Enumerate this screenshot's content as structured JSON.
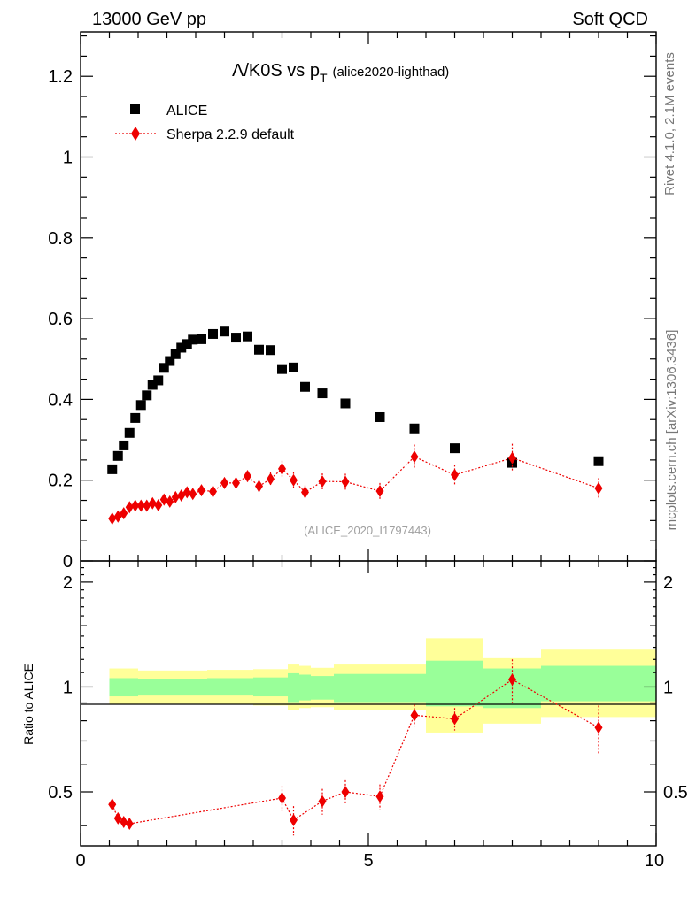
{
  "header": {
    "left": "13000 GeV pp",
    "right": "Soft QCD"
  },
  "side_labels": {
    "rivet": "Rivet 4.1.0,  2.1M events",
    "mcplots": "mcplots.cern.ch [arXiv:1306.3436]"
  },
  "colors": {
    "data": "#000000",
    "mc": "#ee0000",
    "band_inner": "#99ff99",
    "band_outer": "#ffff99"
  },
  "chart_data": [
    {
      "type": "scatter",
      "title_main": "Λ/K0S vs p",
      "title_sub": "T",
      "title_tag": "(alice2020-lighthad)",
      "watermark": "(ALICE_2020_I1797443)",
      "xlim": [
        0,
        10
      ],
      "ylim": [
        0,
        1.31
      ],
      "yticks": [
        0.2,
        0.4,
        0.6,
        0.8,
        1,
        1.2
      ],
      "ytick_labels": [
        "0.2",
        "0.4",
        "0.6",
        "0.8",
        "1",
        "1.2"
      ],
      "ybottom_label": "0",
      "legend": [
        "ALICE",
        "Sherpa 2.2.9 default"
      ],
      "legend_position": "top-left",
      "series": [
        {
          "name": "ALICE",
          "marker": "square",
          "x": [
            0.55,
            0.65,
            0.75,
            0.85,
            0.95,
            1.05,
            1.15,
            1.25,
            1.35,
            1.45,
            1.55,
            1.65,
            1.75,
            1.85,
            1.95,
            2.1,
            2.3,
            2.5,
            2.7,
            2.9,
            3.1,
            3.3,
            3.5,
            3.7,
            3.9,
            4.2,
            4.6,
            5.2,
            5.8,
            6.5,
            7.5,
            9.0
          ],
          "y": [
            0.227,
            0.26,
            0.286,
            0.317,
            0.354,
            0.386,
            0.41,
            0.436,
            0.447,
            0.478,
            0.495,
            0.512,
            0.528,
            0.537,
            0.548,
            0.549,
            0.562,
            0.568,
            0.553,
            0.556,
            0.523,
            0.522,
            0.475,
            0.479,
            0.431,
            0.415,
            0.39,
            0.356,
            0.328,
            0.279,
            0.243,
            0.247
          ]
        },
        {
          "name": "Sherpa 2.2.9 default",
          "marker": "diamond",
          "x": [
            0.55,
            0.65,
            0.75,
            0.85,
            0.95,
            1.05,
            1.15,
            1.25,
            1.35,
            1.45,
            1.55,
            1.65,
            1.75,
            1.85,
            1.95,
            2.1,
            2.3,
            2.5,
            2.7,
            2.9,
            3.1,
            3.3,
            3.5,
            3.7,
            3.9,
            4.2,
            4.6,
            5.2,
            5.8,
            6.5,
            7.5,
            9.0
          ],
          "y": [
            0.105,
            0.11,
            0.118,
            0.133,
            0.137,
            0.137,
            0.137,
            0.143,
            0.138,
            0.152,
            0.147,
            0.158,
            0.162,
            0.17,
            0.166,
            0.175,
            0.172,
            0.193,
            0.193,
            0.21,
            0.185,
            0.203,
            0.228,
            0.2,
            0.17,
            0.197,
            0.196,
            0.173,
            0.258,
            0.213,
            0.255,
            0.18
          ],
          "yerr": [
            0.006,
            0.006,
            0.006,
            0.007,
            0.007,
            0.007,
            0.007,
            0.008,
            0.008,
            0.009,
            0.009,
            0.009,
            0.009,
            0.01,
            0.01,
            0.01,
            0.011,
            0.012,
            0.012,
            0.014,
            0.014,
            0.016,
            0.02,
            0.02,
            0.017,
            0.02,
            0.02,
            0.02,
            0.03,
            0.025,
            0.035,
            0.025
          ]
        }
      ]
    },
    {
      "type": "scatter",
      "ylabel": "Ratio to ALICE",
      "xlim": [
        0,
        10
      ],
      "ylim": [
        0.35,
        2.3
      ],
      "yscale": "log",
      "xticks": [
        0,
        5,
        10
      ],
      "xtick_labels": [
        "0",
        "5",
        "10"
      ],
      "yticks": [
        0.5,
        1,
        2
      ],
      "ytick_labels": [
        "0.5",
        "1",
        "2"
      ],
      "reference_line": 1,
      "band_bins": [
        {
          "x0": 0.5,
          "x1": 1.0,
          "inner": [
            0.94,
            1.06
          ],
          "outer": [
            0.89,
            1.13
          ]
        },
        {
          "x0": 1.0,
          "x1": 1.6,
          "inner": [
            0.945,
            1.055
          ],
          "outer": [
            0.895,
            1.115
          ]
        },
        {
          "x0": 1.6,
          "x1": 2.2,
          "inner": [
            0.945,
            1.055
          ],
          "outer": [
            0.895,
            1.115
          ]
        },
        {
          "x0": 2.2,
          "x1": 3.0,
          "inner": [
            0.945,
            1.06
          ],
          "outer": [
            0.89,
            1.12
          ]
        },
        {
          "x0": 3.0,
          "x1": 3.6,
          "inner": [
            0.94,
            1.065
          ],
          "outer": [
            0.885,
            1.125
          ]
        },
        {
          "x0": 3.6,
          "x1": 3.8,
          "inner": [
            0.905,
            1.095
          ],
          "outer": [
            0.86,
            1.16
          ]
        },
        {
          "x0": 3.8,
          "x1": 4.0,
          "inner": [
            0.915,
            1.085
          ],
          "outer": [
            0.87,
            1.15
          ]
        },
        {
          "x0": 4.0,
          "x1": 4.4,
          "inner": [
            0.92,
            1.075
          ],
          "outer": [
            0.875,
            1.135
          ]
        },
        {
          "x0": 4.4,
          "x1": 6.0,
          "inner": [
            0.905,
            1.09
          ],
          "outer": [
            0.86,
            1.16
          ]
        },
        {
          "x0": 6.0,
          "x1": 7.0,
          "inner": [
            0.88,
            1.19
          ],
          "outer": [
            0.74,
            1.38
          ]
        },
        {
          "x0": 7.0,
          "x1": 8.0,
          "inner": [
            0.87,
            1.13
          ],
          "outer": [
            0.785,
            1.21
          ]
        },
        {
          "x0": 8.0,
          "x1": 10.0,
          "inner": [
            0.91,
            1.15
          ],
          "outer": [
            0.82,
            1.28
          ]
        }
      ],
      "series": [
        {
          "name": "Sherpa 2.2.9 default / ALICE",
          "marker": "diamond",
          "x": [
            0.55,
            0.65,
            0.75,
            0.85,
            3.5,
            3.7,
            4.2,
            4.6,
            5.2,
            5.8,
            6.5,
            7.5,
            9.0
          ],
          "y": [
            0.46,
            0.42,
            0.41,
            0.405,
            0.48,
            0.415,
            0.47,
            0.5,
            0.485,
            0.83,
            0.81,
            1.05,
            0.765
          ],
          "yerr": [
            0.01,
            0.01,
            0.01,
            0.01,
            0.04,
            0.04,
            0.04,
            0.04,
            0.04,
            0.06,
            0.06,
            0.15,
            0.12
          ],
          "below_range_between": [
            [
              0.85,
              3.5
            ],
            [
              3.7,
              4.2
            ]
          ]
        }
      ]
    }
  ]
}
